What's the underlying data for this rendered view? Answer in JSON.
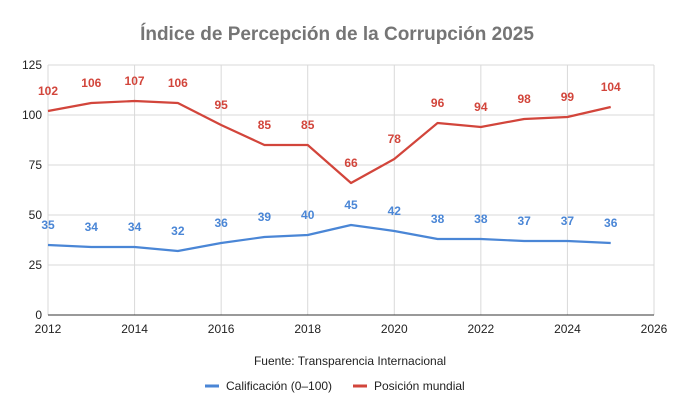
{
  "chart_data": {
    "type": "line",
    "title": "Índice de Percepción de la Corrupción 2025",
    "xlabel": "Fuente: Transparencia Internacional",
    "ylabel": "",
    "x": [
      2012,
      2013,
      2014,
      2015,
      2016,
      2017,
      2018,
      2019,
      2020,
      2021,
      2022,
      2023,
      2024,
      2025
    ],
    "xlim": [
      2012,
      2026
    ],
    "ylim": [
      0,
      125
    ],
    "x_ticks": [
      "2012",
      "2014",
      "2016",
      "2018",
      "2020",
      "2022",
      "2024",
      "2026"
    ],
    "y_ticks": [
      "0",
      "25",
      "50",
      "75",
      "100",
      "125"
    ],
    "grid": true,
    "legend_position": "bottom",
    "series": [
      {
        "name": "Calificación (0–100)",
        "color": "#4a86d6",
        "values": [
          35,
          34,
          34,
          32,
          36,
          39,
          40,
          45,
          42,
          38,
          38,
          37,
          37,
          36
        ]
      },
      {
        "name": "Posición mundial",
        "color": "#d2453b",
        "values": [
          102,
          106,
          107,
          106,
          95,
          85,
          85,
          66,
          78,
          96,
          94,
          98,
          99,
          104
        ]
      }
    ]
  }
}
